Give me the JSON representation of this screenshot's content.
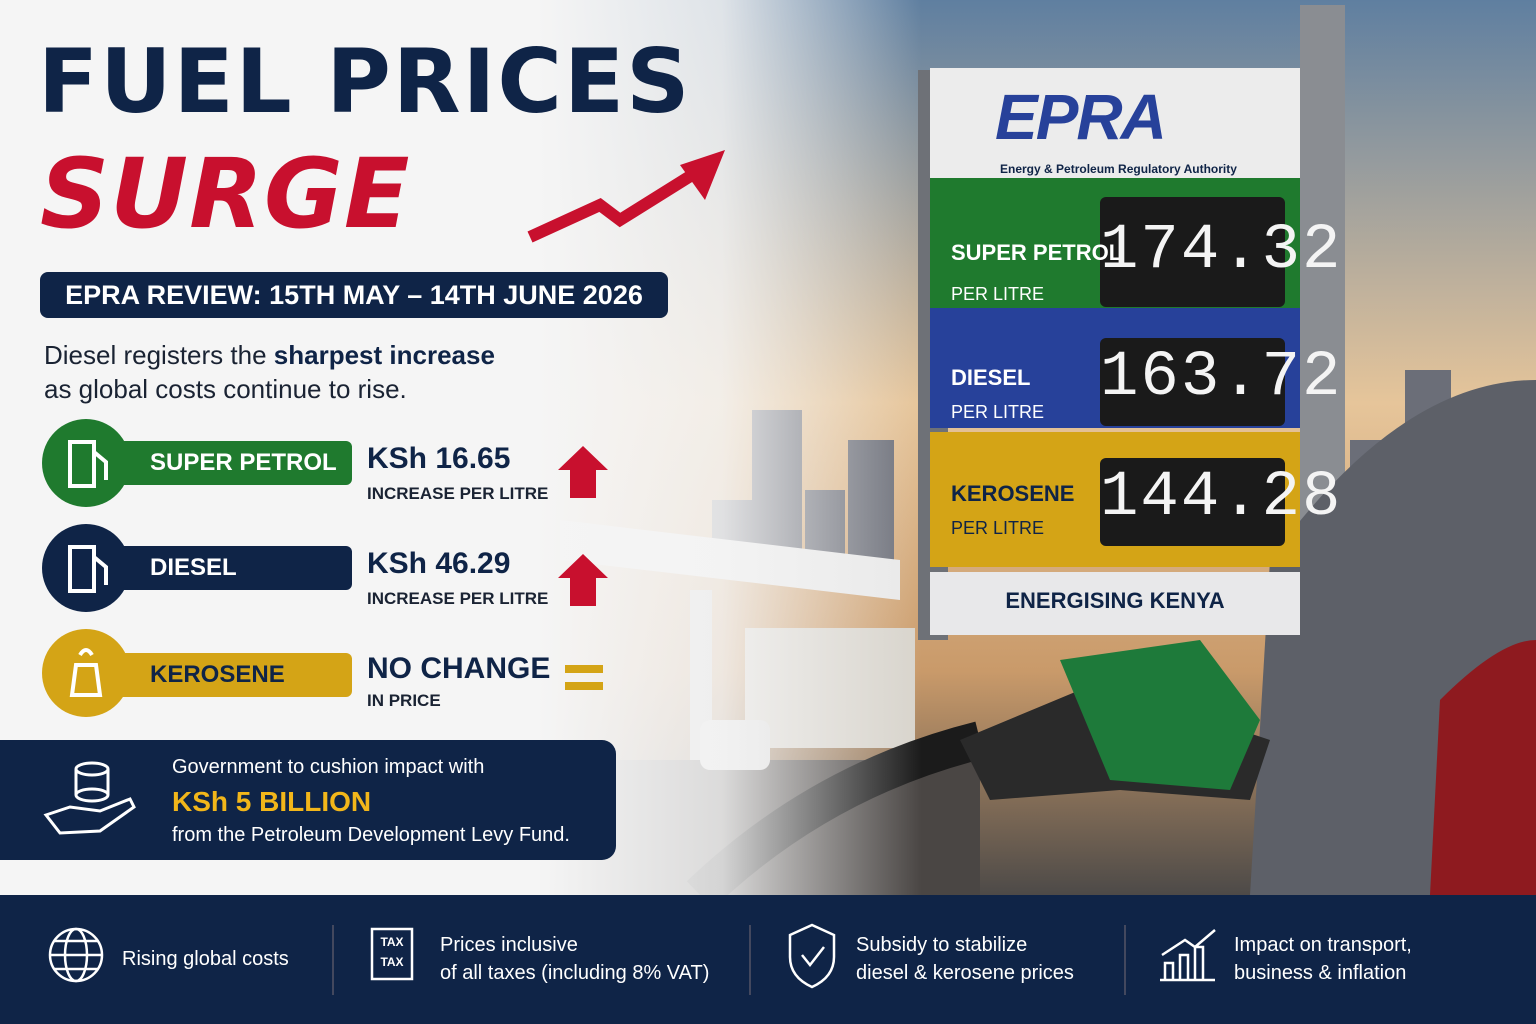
{
  "header": {
    "title_line1": "FUEL PRICES",
    "title_line2": "SURGE",
    "review": "EPRA REVIEW: 15TH MAY – 14TH JUNE 2026",
    "subtitle": {
      "line1": "Diesel registers the",
      "emphasis": "sharpest increase",
      "line2": "as global costs continue to rise."
    }
  },
  "changes": [
    {
      "fuel": "SUPER PETROL",
      "amount": "KSh 16.65",
      "note": "INCREASE PER LITRE"
    },
    {
      "fuel": "DIESEL",
      "amount": "KSh 46.29",
      "note": "INCREASE PER LITRE"
    },
    {
      "fuel": "KEROSENE",
      "amount": "NO CHANGE",
      "note": "IN PRICE"
    }
  ],
  "support": {
    "line1": "Government to cushion impact with",
    "amount": "KSh 5 BILLION",
    "line2": "from the Petroleum Development Levy Fund."
  },
  "sign": {
    "logo": "EPRA",
    "authority": "Energy & Petroleum Regulatory Authority",
    "rows": [
      {
        "fuel": "SUPER PETROL",
        "unit": "PER LITRE",
        "price": "174.32"
      },
      {
        "fuel": "DIESEL",
        "unit": "PER LITRE",
        "price": "163.72"
      },
      {
        "fuel": "KEROSENE",
        "unit": "PER LITRE",
        "price": "144.28"
      }
    ],
    "slogan": "ENERGISING KENYA"
  },
  "footer": {
    "tax_icon": "TAX",
    "items": [
      {
        "lines": [
          "Rising global costs"
        ]
      },
      {
        "lines": [
          "Prices inclusive",
          "of all taxes (including 8% VAT)"
        ]
      },
      {
        "lines": [
          "Subsidy to stabilize",
          "diesel & kerosene prices"
        ]
      },
      {
        "lines": [
          "Impact on transport,",
          "business & inflation"
        ]
      }
    ]
  }
}
